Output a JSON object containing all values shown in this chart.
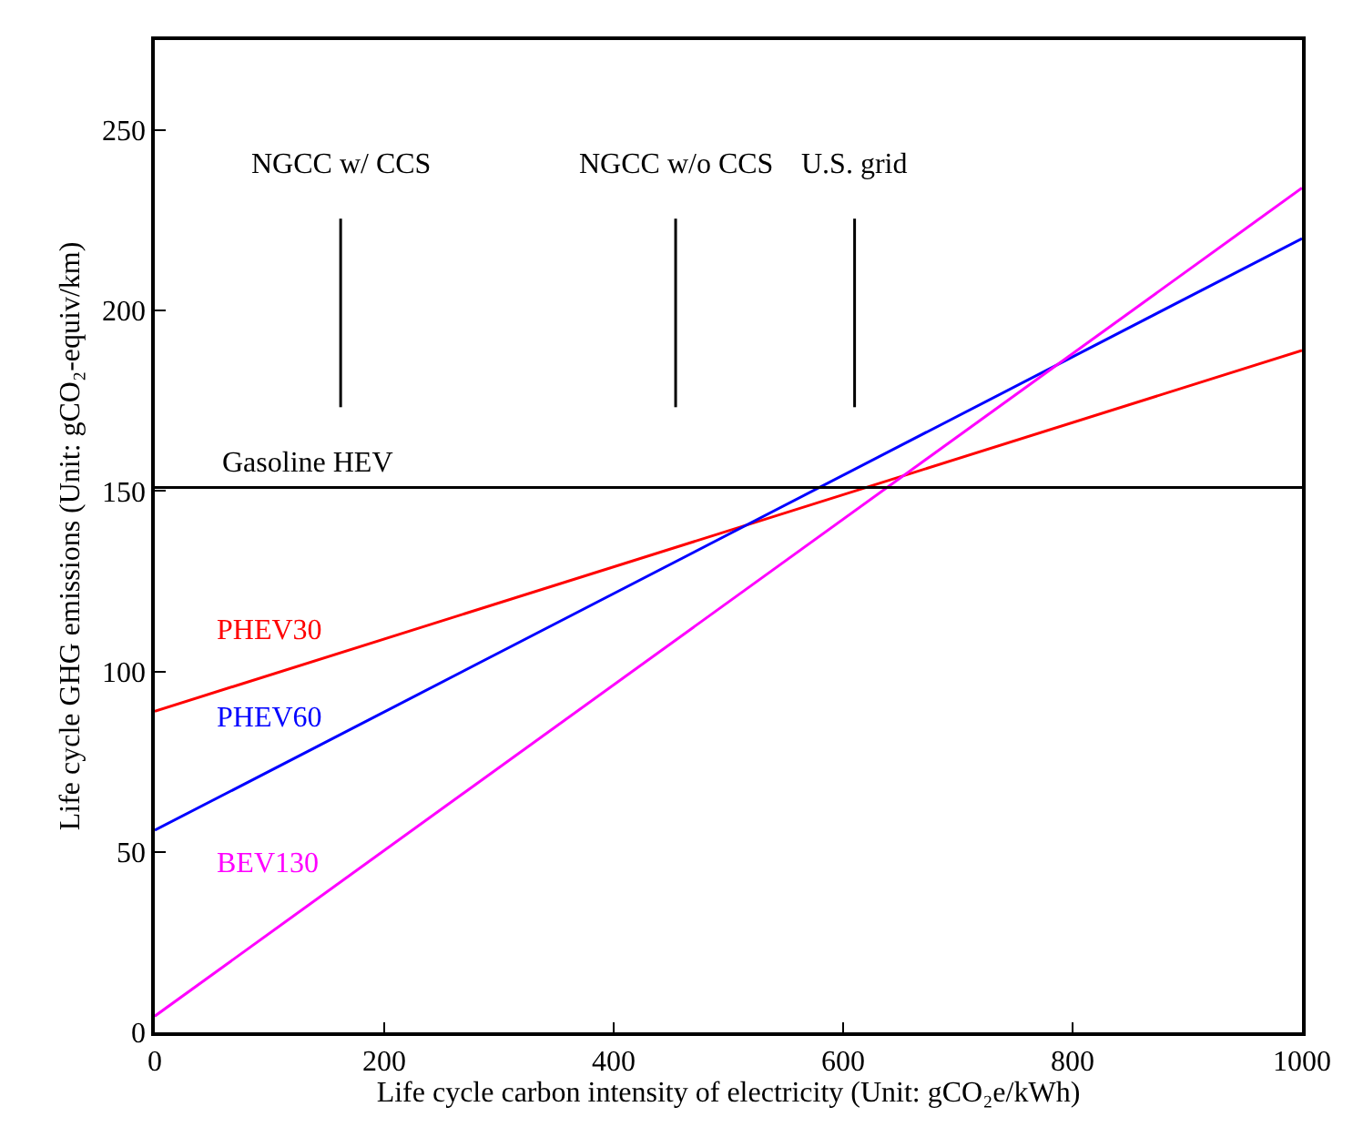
{
  "chart_data": {
    "type": "line",
    "xlabel": "Life cycle carbon intensity of electricity (Unit: gCO₂e/kWh)",
    "ylabel": "Life cycle GHG emissions (Unit: gCO₂-equiv/km)",
    "x": [
      0,
      1000
    ],
    "series": [
      {
        "name": "PHEV30",
        "color": "#ff0000",
        "values": [
          89,
          189
        ]
      },
      {
        "name": "PHEV60",
        "color": "#0000ff",
        "values": [
          56,
          220
        ]
      },
      {
        "name": "BEV130",
        "color": "#ff00ff",
        "values": [
          4.5,
          234
        ]
      }
    ],
    "ref_lines": [
      {
        "axis": "y",
        "value": 151,
        "label": "Gasoline HEV",
        "color": "#000000"
      },
      {
        "axis": "x",
        "value": 162,
        "label": "NGCC w/ CCS",
        "color": "#000000"
      },
      {
        "axis": "x",
        "value": 454,
        "label": "NGCC w/o CCS",
        "color": "#000000"
      },
      {
        "axis": "x",
        "value": 610,
        "label": "U.S. grid",
        "color": "#000000"
      }
    ],
    "xlim": [
      0,
      1000
    ],
    "xticks": [
      0,
      200,
      400,
      600,
      800,
      1000
    ],
    "ylim": [
      0,
      275
    ],
    "yticks": [
      0,
      50,
      100,
      150,
      200,
      250
    ],
    "legend": false,
    "marker": "none",
    "line_style": "solid"
  }
}
